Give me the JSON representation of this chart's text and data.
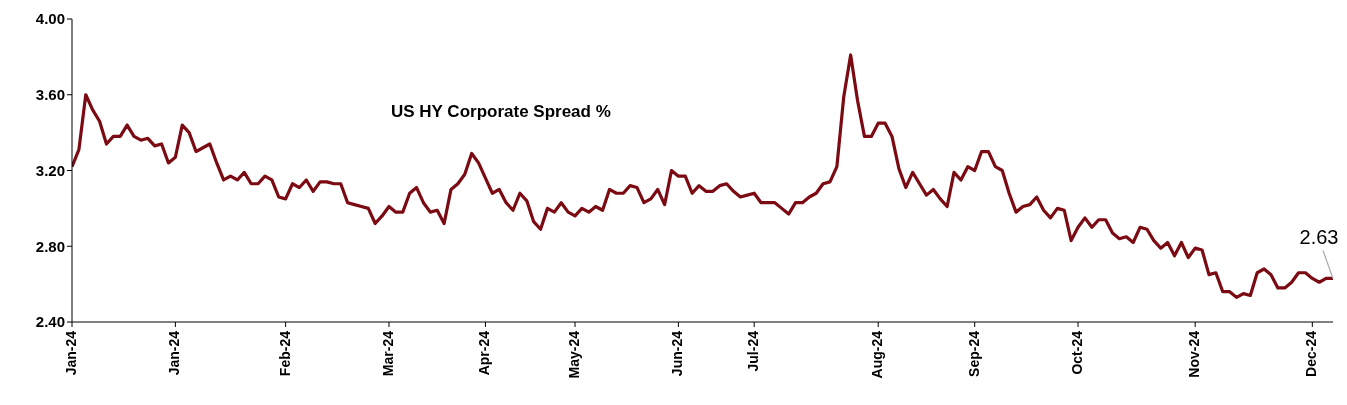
{
  "chart_data": {
    "type": "line",
    "title": "US HY Corporate Spread %",
    "categories": [
      "Jan-24",
      null,
      null,
      null,
      null,
      null,
      null,
      null,
      null,
      null,
      null,
      null,
      null,
      null,
      null,
      "Jan-24",
      null,
      null,
      null,
      null,
      null,
      null,
      null,
      null,
      null,
      null,
      null,
      null,
      null,
      null,
      null,
      "Feb-24",
      null,
      null,
      null,
      null,
      null,
      null,
      null,
      null,
      null,
      null,
      null,
      null,
      null,
      null,
      "Mar-24",
      null,
      null,
      null,
      null,
      null,
      null,
      null,
      null,
      null,
      null,
      null,
      null,
      null,
      "Apr-24",
      null,
      null,
      null,
      null,
      null,
      null,
      null,
      null,
      null,
      null,
      null,
      null,
      "May-24",
      null,
      null,
      null,
      null,
      null,
      null,
      null,
      null,
      null,
      null,
      null,
      null,
      null,
      null,
      "Jun-24",
      null,
      null,
      null,
      null,
      null,
      null,
      null,
      null,
      null,
      null,
      "Jul-24",
      null,
      null,
      null,
      null,
      null,
      null,
      null,
      null,
      null,
      null,
      null,
      null,
      null,
      null,
      null,
      null,
      null,
      "Aug-24",
      null,
      null,
      null,
      null,
      null,
      null,
      null,
      null,
      null,
      null,
      null,
      null,
      null,
      "Sep-24",
      null,
      null,
      null,
      null,
      null,
      null,
      null,
      null,
      null,
      null,
      null,
      null,
      null,
      null,
      "Oct-24",
      null,
      null,
      null,
      null,
      null,
      null,
      null,
      null,
      null,
      null,
      null,
      null,
      null,
      null,
      null,
      null,
      "Nov-24",
      null,
      null,
      null,
      null,
      null,
      null,
      null,
      null,
      null,
      null,
      null,
      null,
      null,
      null,
      null,
      null,
      "Dec-24",
      null,
      null,
      null
    ],
    "series": [
      {
        "color": "#7b0a12",
        "values": [
          3.22,
          3.31,
          3.6,
          3.52,
          3.46,
          3.34,
          3.38,
          3.38,
          3.44,
          3.38,
          3.36,
          3.37,
          3.33,
          3.34,
          3.24,
          3.27,
          3.44,
          3.4,
          3.3,
          3.32,
          3.34,
          3.24,
          3.15,
          3.17,
          3.15,
          3.19,
          3.13,
          3.13,
          3.17,
          3.15,
          3.06,
          3.05,
          3.13,
          3.11,
          3.15,
          3.09,
          3.14,
          3.14,
          3.13,
          3.13,
          3.03,
          3.02,
          3.01,
          3.0,
          2.92,
          2.96,
          3.01,
          2.98,
          2.98,
          3.08,
          3.11,
          3.03,
          2.98,
          2.99,
          2.92,
          3.1,
          3.13,
          3.18,
          3.29,
          3.24,
          3.16,
          3.08,
          3.1,
          3.03,
          2.99,
          3.08,
          3.04,
          2.93,
          2.89,
          3.0,
          2.98,
          3.03,
          2.98,
          2.96,
          3.0,
          2.98,
          3.01,
          2.99,
          3.1,
          3.08,
          3.08,
          3.12,
          3.11,
          3.03,
          3.05,
          3.1,
          3.02,
          3.2,
          3.17,
          3.17,
          3.08,
          3.12,
          3.09,
          3.09,
          3.12,
          3.13,
          3.09,
          3.06,
          3.07,
          3.08,
          3.03,
          3.03,
          3.03,
          3.0,
          2.97,
          3.03,
          3.03,
          3.06,
          3.08,
          3.13,
          3.14,
          3.22,
          3.59,
          3.81,
          3.57,
          3.38,
          3.38,
          3.45,
          3.45,
          3.38,
          3.21,
          3.11,
          3.19,
          3.13,
          3.07,
          3.1,
          3.05,
          3.01,
          3.19,
          3.15,
          3.22,
          3.2,
          3.3,
          3.3,
          3.22,
          3.2,
          3.08,
          2.98,
          3.01,
          3.02,
          3.06,
          2.99,
          2.95,
          3.0,
          2.99,
          2.83,
          2.9,
          2.95,
          2.9,
          2.94,
          2.94,
          2.87,
          2.84,
          2.85,
          2.82,
          2.9,
          2.89,
          2.83,
          2.79,
          2.82,
          2.75,
          2.82,
          2.74,
          2.79,
          2.78,
          2.65,
          2.66,
          2.56,
          2.56,
          2.53,
          2.55,
          2.54,
          2.66,
          2.68,
          2.65,
          2.58,
          2.58,
          2.61,
          2.66,
          2.66,
          2.63,
          2.61,
          2.63,
          2.63
        ]
      }
    ],
    "ylim": [
      2.4,
      4.0
    ],
    "yticks": [
      {
        "value": 2.4,
        "label": "2.40"
      },
      {
        "value": 2.8,
        "label": "2.80"
      },
      {
        "value": 3.2,
        "label": "3.20"
      },
      {
        "value": 3.6,
        "label": "3.60"
      },
      {
        "value": 4.0,
        "label": "4.00"
      }
    ],
    "annotations": [
      {
        "text": "2.63",
        "y": 2.63
      }
    ],
    "grid": false,
    "legend": false,
    "marker": "none",
    "line_style": "solid"
  }
}
